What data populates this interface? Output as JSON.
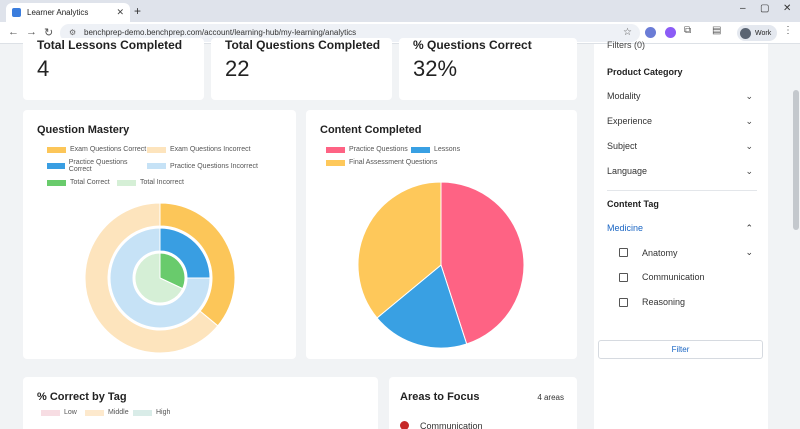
{
  "browser": {
    "tab_title": "Learner Analytics",
    "url": "benchprep-demo.benchprep.com/account/learning-hub/my-learning/analytics",
    "profile_label": "Work"
  },
  "stats": [
    {
      "label": "Total Lessons Completed",
      "value": "4"
    },
    {
      "label": "Total Questions Completed",
      "value": "22"
    },
    {
      "label": "% Questions Correct",
      "value": "32%"
    }
  ],
  "question_mastery": {
    "title": "Question Mastery",
    "legend": [
      {
        "label": "Exam Questions Correct",
        "color": "#fcc659"
      },
      {
        "label": "Exam Questions Incorrect",
        "color": "#fde4bd"
      },
      {
        "label": "Practice Questions Correct",
        "color": "#399ee2"
      },
      {
        "label": "Practice Questions Incorrect",
        "color": "#c6e2f6"
      },
      {
        "label": "Total Correct",
        "color": "#69cb6c"
      },
      {
        "label": "Total Incorrect",
        "color": "#d5efd6"
      }
    ]
  },
  "content_completed": {
    "title": "Content Completed",
    "legend": [
      {
        "label": "Practice Questions",
        "color": "#fe6384"
      },
      {
        "label": "Lessons",
        "color": "#39a0e3"
      },
      {
        "label": "Final Assessment Questions",
        "color": "#fec85a"
      }
    ]
  },
  "correct_by_tag": {
    "title": "% Correct by Tag",
    "legend": [
      {
        "label": "Low",
        "color": "#f7dde3"
      },
      {
        "label": "Middle",
        "color": "#fde9cd"
      },
      {
        "label": "High",
        "color": "#d9ece8"
      }
    ]
  },
  "areas_to_focus": {
    "title": "Areas to Focus",
    "count": "4 areas",
    "first_item": "Communication"
  },
  "sidebar": {
    "header": "Filters (0)",
    "product_category": "Product Category",
    "filters": [
      "Modality",
      "Experience",
      "Subject",
      "Language"
    ],
    "content_tag": "Content Tag",
    "medicine": "Medicine",
    "subtags": [
      "Anatomy",
      "Communication",
      "Reasoning"
    ],
    "filter_button": "Filter"
  },
  "chart_data": [
    {
      "type": "pie",
      "variant": "nested-doughnut",
      "title": "Question Mastery",
      "series": [
        {
          "name": "Exam",
          "labels": [
            "Exam Questions Correct",
            "Exam Questions Incorrect"
          ],
          "values": [
            36,
            64
          ]
        },
        {
          "name": "Practice",
          "labels": [
            "Practice Questions Correct",
            "Practice Questions Incorrect"
          ],
          "values": [
            25,
            75
          ]
        },
        {
          "name": "Total",
          "labels": [
            "Total Correct",
            "Total Incorrect"
          ],
          "values": [
            32,
            68
          ]
        }
      ]
    },
    {
      "type": "pie",
      "title": "Content Completed",
      "categories": [
        "Practice Questions",
        "Lessons",
        "Final Assessment Questions"
      ],
      "values": [
        45,
        19,
        36
      ]
    }
  ]
}
